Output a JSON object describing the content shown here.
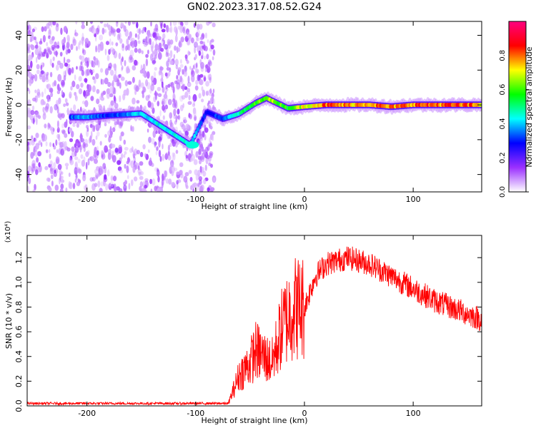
{
  "title": "GN02.2023.317.08.52.G24",
  "chart_data": [
    {
      "type": "heatmap",
      "xlabel": "Height of straight line (km)",
      "ylabel": "Frequency (Hz)",
      "xlim": [
        -255,
        163
      ],
      "ylim": [
        -50,
        48
      ],
      "x_ticks": [
        -200,
        -100,
        0,
        100
      ],
      "x_tick_labels": [
        "-200",
        "-100",
        "0",
        "100"
      ],
      "y_ticks": [
        -40,
        -20,
        0,
        20,
        40
      ],
      "y_tick_labels": [
        "-40",
        "-20",
        "0",
        "20",
        "40"
      ],
      "grid": false,
      "colorbar": {
        "label": "Normalized spectral amplitude",
        "range": [
          0,
          1
        ],
        "ticks": [
          0.0,
          0.2,
          0.4,
          0.6,
          0.8
        ],
        "tick_labels": [
          "0.0",
          "0.2",
          "0.4",
          "0.6",
          "0.8"
        ],
        "colors": [
          "#ffffff",
          "#9b30ff",
          "#0000ff",
          "#00ffff",
          "#00ff00",
          "#ffff00",
          "#ff0000",
          "#ff0080"
        ]
      },
      "noise_region_x": [
        -255,
        -83
      ],
      "ridge": [
        {
          "x": -215,
          "y": -7,
          "amp": 0.35
        },
        {
          "x": -200,
          "y": -7,
          "amp": 0.4
        },
        {
          "x": -180,
          "y": -6,
          "amp": 0.3
        },
        {
          "x": -150,
          "y": -5,
          "amp": 0.45
        },
        {
          "x": -105,
          "y": -23,
          "amp": 0.45
        },
        {
          "x": -90,
          "y": -4,
          "amp": 0.3
        },
        {
          "x": -75,
          "y": -8,
          "amp": 0.35
        },
        {
          "x": -60,
          "y": -5,
          "amp": 0.5
        },
        {
          "x": -45,
          "y": 1,
          "amp": 0.6
        },
        {
          "x": -35,
          "y": 4,
          "amp": 0.7
        },
        {
          "x": -25,
          "y": 1,
          "amp": 0.65
        },
        {
          "x": -15,
          "y": -2,
          "amp": 0.6
        },
        {
          "x": 0,
          "y": -1,
          "amp": 0.75
        },
        {
          "x": 20,
          "y": 0,
          "amp": 0.85
        },
        {
          "x": 40,
          "y": 0,
          "amp": 0.8
        },
        {
          "x": 60,
          "y": 0,
          "amp": 0.85
        },
        {
          "x": 80,
          "y": -1,
          "amp": 0.8
        },
        {
          "x": 100,
          "y": 0,
          "amp": 0.85
        },
        {
          "x": 120,
          "y": 0,
          "amp": 0.85
        },
        {
          "x": 140,
          "y": 0,
          "amp": 0.85
        },
        {
          "x": 163,
          "y": 0,
          "amp": 0.8
        }
      ]
    },
    {
      "type": "line",
      "xlabel": "Height of straight line (km)",
      "ylabel": "SNR (10 * v/v)",
      "scale_label": "(x10⁴)",
      "xlim": [
        -255,
        163
      ],
      "ylim": [
        0,
        1.38
      ],
      "x_ticks": [
        -200,
        -100,
        0,
        100
      ],
      "x_tick_labels": [
        "-200",
        "-100",
        "0",
        "100"
      ],
      "y_ticks": [
        0.0,
        0.2,
        0.4,
        0.6,
        0.8,
        1.0,
        1.2
      ],
      "y_tick_labels": [
        "0.0",
        "0.2",
        "0.4",
        "0.6",
        "0.8",
        "1.0",
        "1.2"
      ],
      "grid": false,
      "series": [
        {
          "color": "#ff0000",
          "envelope": [
            {
              "x": -255,
              "y": 0.02
            },
            {
              "x": -150,
              "y": 0.02
            },
            {
              "x": -70,
              "y": 0.02
            },
            {
              "x": -60,
              "y": 0.25
            },
            {
              "x": -50,
              "y": 0.35
            },
            {
              "x": -45,
              "y": 0.45
            },
            {
              "x": -30,
              "y": 0.35
            },
            {
              "x": -20,
              "y": 0.65
            },
            {
              "x": -10,
              "y": 0.8
            },
            {
              "x": 0,
              "y": 0.8
            },
            {
              "x": 10,
              "y": 1.05
            },
            {
              "x": 20,
              "y": 1.15
            },
            {
              "x": 40,
              "y": 1.2
            },
            {
              "x": 60,
              "y": 1.15
            },
            {
              "x": 80,
              "y": 1.05
            },
            {
              "x": 100,
              "y": 0.95
            },
            {
              "x": 120,
              "y": 0.85
            },
            {
              "x": 140,
              "y": 0.78
            },
            {
              "x": 163,
              "y": 0.7
            }
          ]
        }
      ]
    }
  ]
}
